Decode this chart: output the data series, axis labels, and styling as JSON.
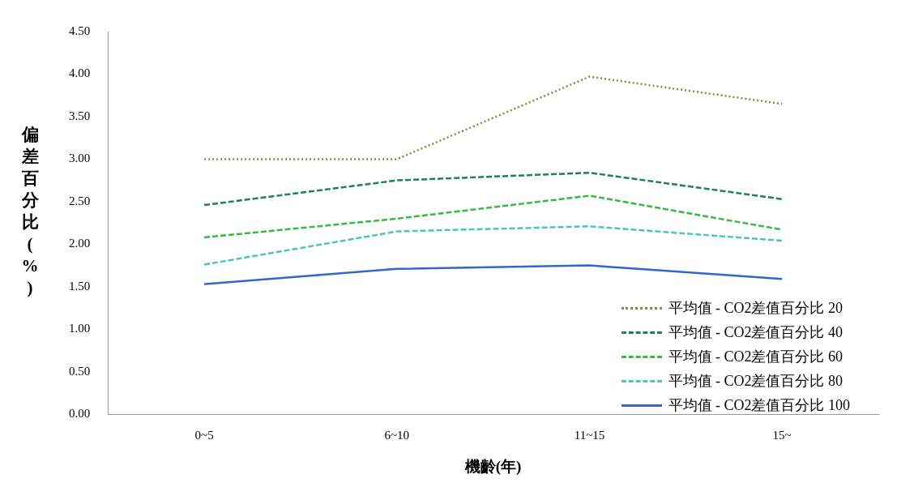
{
  "chart_data": {
    "type": "line",
    "xlabel": "機齡(年)",
    "ylabel": "偏差百分比(%)",
    "categories": [
      "0~5",
      "6~10",
      "11~15",
      "15~"
    ],
    "series": [
      {
        "name": "平均值 - CO2差值百分比 20",
        "color": "#77933c",
        "line_style": "dotted",
        "values": [
          3.0,
          3.0,
          3.97,
          3.65
        ]
      },
      {
        "name": "平均值 - CO2差值百分比 40",
        "color": "#1f7f5f",
        "line_style": "dashed",
        "values": [
          2.46,
          2.75,
          2.84,
          2.53
        ]
      },
      {
        "name": "平均值 - CO2差值百分比 60",
        "color": "#33bb44",
        "line_style": "dashed",
        "values": [
          2.08,
          2.3,
          2.57,
          2.17
        ]
      },
      {
        "name": "平均值 - CO2差值百分比 80",
        "color": "#4bc6b5",
        "line_style": "dashed",
        "values": [
          1.76,
          2.15,
          2.21,
          2.04
        ]
      },
      {
        "name": "平均值 - CO2差值百分比 100",
        "color": "#3366cc",
        "line_style": "solid",
        "values": [
          1.53,
          1.71,
          1.75,
          1.59
        ]
      }
    ],
    "ylim": [
      0,
      4.5
    ],
    "yticks": [
      {
        "value": 0,
        "label": "0.00"
      },
      {
        "value": 0.5,
        "label": "0.50"
      },
      {
        "value": 1,
        "label": "1.00"
      },
      {
        "value": 1.5,
        "label": "1.50"
      },
      {
        "value": 2,
        "label": "2.00"
      },
      {
        "value": 2.5,
        "label": "2.50"
      },
      {
        "value": 3,
        "label": "3.00"
      },
      {
        "value": 3.5,
        "label": "3.50"
      },
      {
        "value": 4,
        "label": "4.00"
      },
      {
        "value": 4.5,
        "label": "4.50"
      }
    ],
    "grid": false,
    "legend": "bottom right",
    "marker": "none"
  }
}
